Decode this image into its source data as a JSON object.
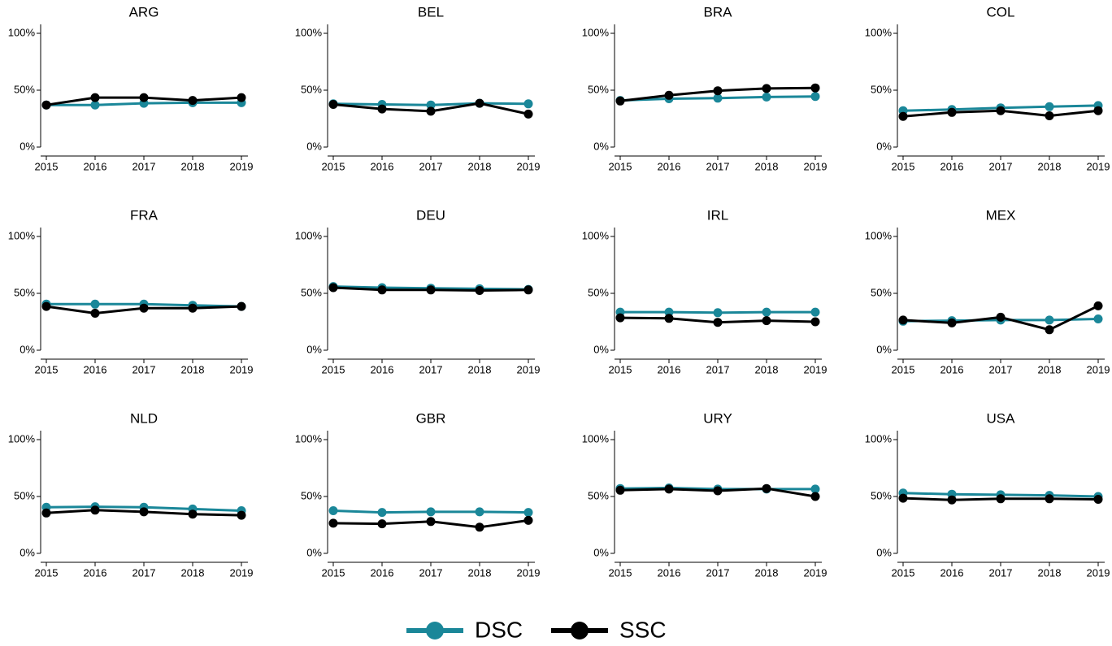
{
  "chart_data": [
    {
      "type": "line",
      "title": "ARG",
      "x": [
        2015,
        2016,
        2017,
        2018,
        2019
      ],
      "xlim": [
        2015,
        2019
      ],
      "xticks": [
        2015,
        2016,
        2017,
        2018,
        2019
      ],
      "ylim": [
        0,
        100
      ],
      "yticks": [
        {
          "value": 0,
          "label": "0%"
        },
        {
          "value": 50,
          "label": "50%"
        },
        {
          "value": 100,
          "label": "100%"
        }
      ],
      "series": [
        {
          "name": "DSC",
          "color": "#1a8799",
          "values": [
            37,
            37,
            38.5,
            39,
            39
          ]
        },
        {
          "name": "SSC",
          "color": "#000000",
          "values": [
            37,
            43.5,
            43.5,
            41,
            43.5
          ]
        }
      ]
    },
    {
      "type": "line",
      "title": "BEL",
      "x": [
        2015,
        2016,
        2017,
        2018,
        2019
      ],
      "xlim": [
        2015,
        2019
      ],
      "xticks": [
        2015,
        2016,
        2017,
        2018,
        2019
      ],
      "ylim": [
        0,
        100
      ],
      "yticks": [
        {
          "value": 0,
          "label": "0%"
        },
        {
          "value": 50,
          "label": "50%"
        },
        {
          "value": 100,
          "label": "100%"
        }
      ],
      "series": [
        {
          "name": "DSC",
          "color": "#1a8799",
          "values": [
            38,
            37.5,
            37,
            38.5,
            38
          ]
        },
        {
          "name": "SSC",
          "color": "#000000",
          "values": [
            37.5,
            33.5,
            31.5,
            38.5,
            29
          ]
        }
      ]
    },
    {
      "type": "line",
      "title": "BRA",
      "x": [
        2015,
        2016,
        2017,
        2018,
        2019
      ],
      "xlim": [
        2015,
        2019
      ],
      "xticks": [
        2015,
        2016,
        2017,
        2018,
        2019
      ],
      "ylim": [
        0,
        100
      ],
      "yticks": [
        {
          "value": 0,
          "label": "0%"
        },
        {
          "value": 50,
          "label": "50%"
        },
        {
          "value": 100,
          "label": "100%"
        }
      ],
      "series": [
        {
          "name": "DSC",
          "color": "#1a8799",
          "values": [
            41,
            42.5,
            43,
            44,
            44.5
          ]
        },
        {
          "name": "SSC",
          "color": "#000000",
          "values": [
            40.5,
            45.5,
            49.5,
            51.5,
            52
          ]
        }
      ]
    },
    {
      "type": "line",
      "title": "COL",
      "x": [
        2015,
        2016,
        2017,
        2018,
        2019
      ],
      "xlim": [
        2015,
        2019
      ],
      "xticks": [
        2015,
        2016,
        2017,
        2018,
        2019
      ],
      "ylim": [
        0,
        100
      ],
      "yticks": [
        {
          "value": 0,
          "label": "0%"
        },
        {
          "value": 50,
          "label": "50%"
        },
        {
          "value": 100,
          "label": "100%"
        }
      ],
      "series": [
        {
          "name": "DSC",
          "color": "#1a8799",
          "values": [
            32,
            33,
            34.5,
            35.5,
            36.5
          ]
        },
        {
          "name": "SSC",
          "color": "#000000",
          "values": [
            27,
            30.5,
            32,
            27.5,
            32
          ]
        }
      ]
    },
    {
      "type": "line",
      "title": "FRA",
      "x": [
        2015,
        2016,
        2017,
        2018,
        2019
      ],
      "xlim": [
        2015,
        2019
      ],
      "xticks": [
        2015,
        2016,
        2017,
        2018,
        2019
      ],
      "ylim": [
        0,
        100
      ],
      "yticks": [
        {
          "value": 0,
          "label": "0%"
        },
        {
          "value": 50,
          "label": "50%"
        },
        {
          "value": 100,
          "label": "100%"
        }
      ],
      "series": [
        {
          "name": "DSC",
          "color": "#1a8799",
          "values": [
            40.5,
            40.5,
            40.5,
            39.5,
            38.5
          ]
        },
        {
          "name": "SSC",
          "color": "#000000",
          "values": [
            38.5,
            32.5,
            37,
            37,
            38.5
          ]
        }
      ]
    },
    {
      "type": "line",
      "title": "DEU",
      "x": [
        2015,
        2016,
        2017,
        2018,
        2019
      ],
      "xlim": [
        2015,
        2019
      ],
      "xticks": [
        2015,
        2016,
        2017,
        2018,
        2019
      ],
      "ylim": [
        0,
        100
      ],
      "yticks": [
        {
          "value": 0,
          "label": "0%"
        },
        {
          "value": 50,
          "label": "50%"
        },
        {
          "value": 100,
          "label": "100%"
        }
      ],
      "series": [
        {
          "name": "DSC",
          "color": "#1a8799",
          "values": [
            56,
            55,
            54.5,
            54,
            53.5
          ]
        },
        {
          "name": "SSC",
          "color": "#000000",
          "values": [
            55,
            53,
            53,
            52.5,
            53
          ]
        }
      ]
    },
    {
      "type": "line",
      "title": "IRL",
      "x": [
        2015,
        2016,
        2017,
        2018,
        2019
      ],
      "xlim": [
        2015,
        2019
      ],
      "xticks": [
        2015,
        2016,
        2017,
        2018,
        2019
      ],
      "ylim": [
        0,
        100
      ],
      "yticks": [
        {
          "value": 0,
          "label": "0%"
        },
        {
          "value": 50,
          "label": "50%"
        },
        {
          "value": 100,
          "label": "100%"
        }
      ],
      "series": [
        {
          "name": "DSC",
          "color": "#1a8799",
          "values": [
            33.5,
            33.5,
            33,
            33.5,
            33.5
          ]
        },
        {
          "name": "SSC",
          "color": "#000000",
          "values": [
            28.5,
            28,
            24.5,
            26,
            25
          ]
        }
      ]
    },
    {
      "type": "line",
      "title": "MEX",
      "x": [
        2015,
        2016,
        2017,
        2018,
        2019
      ],
      "xlim": [
        2015,
        2019
      ],
      "xticks": [
        2015,
        2016,
        2017,
        2018,
        2019
      ],
      "ylim": [
        0,
        100
      ],
      "yticks": [
        {
          "value": 0,
          "label": "0%"
        },
        {
          "value": 50,
          "label": "50%"
        },
        {
          "value": 100,
          "label": "100%"
        }
      ],
      "series": [
        {
          "name": "DSC",
          "color": "#1a8799",
          "values": [
            25.5,
            26,
            26.5,
            26.5,
            27.5
          ]
        },
        {
          "name": "SSC",
          "color": "#000000",
          "values": [
            26.5,
            24,
            29,
            18,
            39
          ]
        }
      ]
    },
    {
      "type": "line",
      "title": "NLD",
      "x": [
        2015,
        2016,
        2017,
        2018,
        2019
      ],
      "xlim": [
        2015,
        2019
      ],
      "xticks": [
        2015,
        2016,
        2017,
        2018,
        2019
      ],
      "ylim": [
        0,
        100
      ],
      "yticks": [
        {
          "value": 0,
          "label": "0%"
        },
        {
          "value": 50,
          "label": "50%"
        },
        {
          "value": 100,
          "label": "100%"
        }
      ],
      "series": [
        {
          "name": "DSC",
          "color": "#1a8799",
          "values": [
            40.5,
            41,
            40.5,
            39,
            37.5
          ]
        },
        {
          "name": "SSC",
          "color": "#000000",
          "values": [
            35.5,
            38,
            36.5,
            34.5,
            33.5
          ]
        }
      ]
    },
    {
      "type": "line",
      "title": "GBR",
      "x": [
        2015,
        2016,
        2017,
        2018,
        2019
      ],
      "xlim": [
        2015,
        2019
      ],
      "xticks": [
        2015,
        2016,
        2017,
        2018,
        2019
      ],
      "ylim": [
        0,
        100
      ],
      "yticks": [
        {
          "value": 0,
          "label": "0%"
        },
        {
          "value": 50,
          "label": "50%"
        },
        {
          "value": 100,
          "label": "100%"
        }
      ],
      "series": [
        {
          "name": "DSC",
          "color": "#1a8799",
          "values": [
            37.5,
            36,
            36.5,
            36.5,
            36
          ]
        },
        {
          "name": "SSC",
          "color": "#000000",
          "values": [
            26.5,
            26,
            28,
            23,
            29
          ]
        }
      ]
    },
    {
      "type": "line",
      "title": "URY",
      "x": [
        2015,
        2016,
        2017,
        2018,
        2019
      ],
      "xlim": [
        2015,
        2019
      ],
      "xticks": [
        2015,
        2016,
        2017,
        2018,
        2019
      ],
      "ylim": [
        0,
        100
      ],
      "yticks": [
        {
          "value": 0,
          "label": "0%"
        },
        {
          "value": 50,
          "label": "50%"
        },
        {
          "value": 100,
          "label": "100%"
        }
      ],
      "series": [
        {
          "name": "DSC",
          "color": "#1a8799",
          "values": [
            57,
            57.5,
            56.5,
            56.5,
            56.5
          ]
        },
        {
          "name": "SSC",
          "color": "#000000",
          "values": [
            55.5,
            56.5,
            55,
            57,
            50
          ]
        }
      ]
    },
    {
      "type": "line",
      "title": "USA",
      "x": [
        2015,
        2016,
        2017,
        2018,
        2019
      ],
      "xlim": [
        2015,
        2019
      ],
      "xticks": [
        2015,
        2016,
        2017,
        2018,
        2019
      ],
      "ylim": [
        0,
        100
      ],
      "yticks": [
        {
          "value": 0,
          "label": "0%"
        },
        {
          "value": 50,
          "label": "50%"
        },
        {
          "value": 100,
          "label": "100%"
        }
      ],
      "series": [
        {
          "name": "DSC",
          "color": "#1a8799",
          "values": [
            53,
            52,
            51.5,
            51,
            50
          ]
        },
        {
          "name": "SSC",
          "color": "#000000",
          "values": [
            48.5,
            47,
            48,
            48,
            47.5
          ]
        }
      ]
    }
  ]
}
